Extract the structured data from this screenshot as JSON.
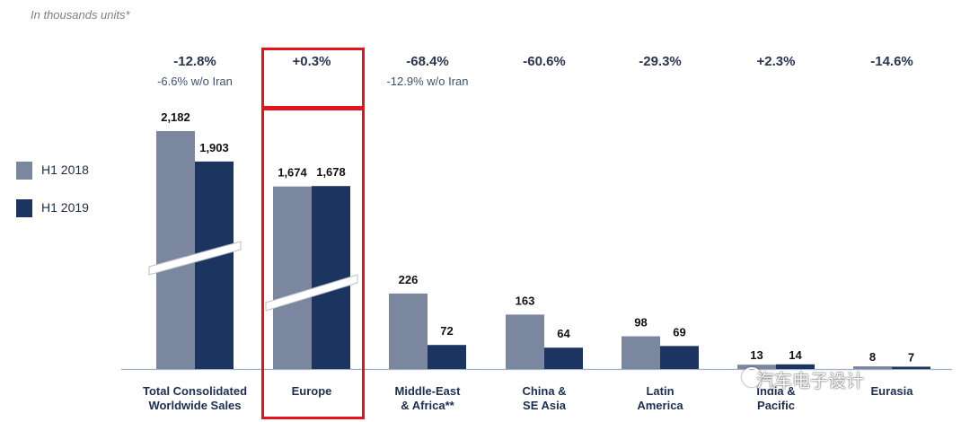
{
  "unit_note": "In thousands units*",
  "legend": [
    {
      "label": "H1 2018",
      "color": "#7a879f"
    },
    {
      "label": "H1 2019",
      "color": "#1c3560"
    }
  ],
  "highlight_color": "#e3141b",
  "watermark": "汽车电子设计",
  "chart_data": {
    "type": "bar",
    "categories": [
      "Total Consolidated\nWorldwide Sales",
      "Europe",
      "Middle-East\n& Africa**",
      "China &\nSE Asia",
      "Latin\nAmerica",
      "India &\nPacific",
      "Eurasia"
    ],
    "series": [
      {
        "name": "H1 2018",
        "values": [
          2182,
          1674,
          226,
          163,
          98,
          13,
          8
        ],
        "labels": [
          "2,182",
          "1,674",
          "226",
          "163",
          "98",
          "13",
          "8"
        ]
      },
      {
        "name": "H1 2019",
        "values": [
          1903,
          1678,
          72,
          64,
          69,
          14,
          7
        ],
        "labels": [
          "1,903",
          "1,678",
          "72",
          "64",
          "69",
          "14",
          "7"
        ]
      }
    ],
    "changes": [
      "-12.8%",
      "+0.3%",
      "-68.4%",
      "-60.6%",
      "-29.3%",
      "+2.3%",
      "-14.6%"
    ],
    "change_notes": [
      "-6.6% w/o Iran",
      "",
      "-12.9% w/o Iran",
      "",
      "",
      "",
      ""
    ],
    "axis_break": true,
    "highlighted_category": "Europe"
  }
}
